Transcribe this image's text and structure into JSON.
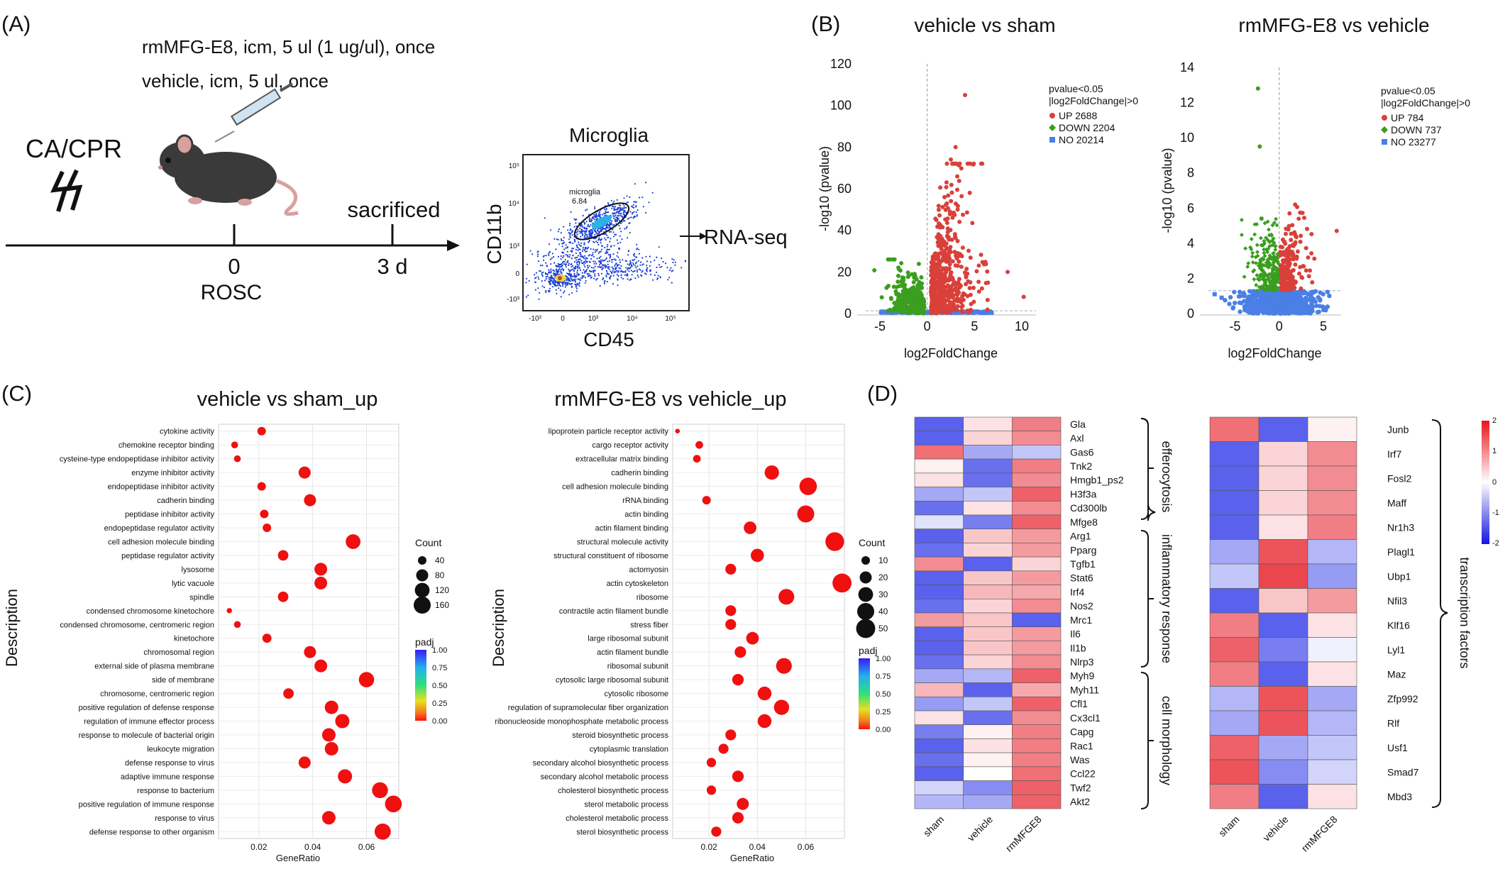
{
  "panels": {
    "A": {
      "label": "(A)",
      "treatment_line1": "rmMFG-E8, icm, 5 ul (1 ug/ul), once",
      "treatment_line2": "vehicle, icm, 5 ul, once",
      "event": "CA/CPR",
      "timepoint0": "0",
      "rosc": "ROSC",
      "sacrificed": "sacrificed",
      "timepoint3": "3 d",
      "flow_title": "Microglia",
      "flow_xlabel": "CD45",
      "flow_ylabel": "CD11b",
      "gate_name": "microglia",
      "gate_value": "6.84",
      "flow_yticks": [
        "10⁵",
        "10⁴",
        "10³",
        "0",
        "-10³"
      ],
      "flow_xticks": [
        "-10³",
        "0",
        "10³",
        "10⁴",
        "10⁵"
      ],
      "output": "RNA-seq"
    },
    "B": {
      "label": "(B)",
      "plots": [
        {
          "title": "vehicle vs sham",
          "xlabel": "log2FoldChange",
          "ylabel": "-log10 (pvalue)",
          "xlim": [
            -6.5,
            11.5
          ],
          "ylim": [
            0,
            120
          ],
          "xticks": [
            -5,
            0,
            5,
            10
          ],
          "yticks": [
            0,
            20,
            40,
            60,
            80,
            100,
            120
          ],
          "legend_header1": "pvalue<0.05",
          "legend_header2": "|log2FoldChange|>0",
          "legend": [
            {
              "label": "UP 2688",
              "color": "#d9403a"
            },
            {
              "label": "DOWN 2204",
              "color": "#3a9e1e"
            },
            {
              "label": "NO 20214",
              "color": "#4a7fe6"
            }
          ]
        },
        {
          "title": "rmMFG-E8 vs vehicle",
          "xlabel": "log2FoldChange",
          "ylabel": "-log10 (pvalue)",
          "xlim": [
            -8,
            7
          ],
          "ylim": [
            0,
            14
          ],
          "xticks": [
            -5,
            0,
            5
          ],
          "yticks": [
            0,
            2,
            4,
            6,
            8,
            10,
            12,
            14
          ],
          "legend_header1": "pvalue<0.05",
          "legend_header2": "|log2FoldChange|>0",
          "legend": [
            {
              "label": "UP 784",
              "color": "#d9403a"
            },
            {
              "label": "DOWN 737",
              "color": "#3a9e1e"
            },
            {
              "label": "NO 23277",
              "color": "#4a7fe6"
            }
          ]
        }
      ]
    },
    "C": {
      "label": "(C)",
      "colorbar_ticks": [
        "1.00",
        "0.75",
        "0.50",
        "0.25",
        "0.00"
      ]
    },
    "D": {
      "label": "(D)",
      "columns": [
        "sham",
        "vehicle",
        "rmMFGE8"
      ],
      "left_groups": [
        "efferocytosis",
        "inflammatory response",
        "cell morphology"
      ],
      "right_group": "transcription factors",
      "scale_ticks": [
        "2",
        "1",
        "0",
        "-1",
        "-2"
      ]
    }
  },
  "chart_data": [
    {
      "type": "scatter",
      "title": "vehicle vs sham_up",
      "xlabel": "GeneRatio",
      "ylabel": "Description",
      "xlim": [
        0.005,
        0.072
      ],
      "xticks": [
        0.02,
        0.04,
        0.06
      ],
      "xtick_labels": [
        "0.02",
        "0.04",
        "0.06"
      ],
      "size_legend_title": "Count",
      "size_legend": [
        40,
        80,
        120,
        160
      ],
      "color_legend_title": "padj",
      "categories": [
        "cytokine activity",
        "chemokine receptor binding",
        "cysteine-type endopeptidase inhibitor activity",
        "enzyme inhibitor activity",
        "endopeptidase inhibitor activity",
        "cadherin binding",
        "peptidase inhibitor activity",
        "endopeptidase regulator activity",
        "cell adhesion molecule binding",
        "peptidase regulator activity",
        "lysosome",
        "lytic vacuole",
        "spindle",
        "condensed chromosome kinetochore",
        "condensed chromosome, centromeric region",
        "kinetochore",
        "chromosomal region",
        "external side of plasma membrane",
        "side of membrane",
        "chromosome, centromeric region",
        "positive regulation of defense response",
        "regulation of immune effector process",
        "response to molecule of bacterial origin",
        "leukocyte migration",
        "defense response to virus",
        "adaptive immune response",
        "response to bacterium",
        "positive regulation of immune response",
        "response to virus",
        "defense response to other organism"
      ],
      "gene_ratio": [
        0.021,
        0.011,
        0.012,
        0.037,
        0.021,
        0.039,
        0.022,
        0.023,
        0.055,
        0.029,
        0.043,
        0.043,
        0.029,
        0.009,
        0.012,
        0.023,
        0.039,
        0.043,
        0.06,
        0.031,
        0.047,
        0.051,
        0.046,
        0.047,
        0.037,
        0.052,
        0.065,
        0.07,
        0.046,
        0.066
      ],
      "count": [
        40,
        25,
        25,
        80,
        40,
        80,
        40,
        40,
        120,
        60,
        90,
        90,
        60,
        15,
        25,
        45,
        80,
        90,
        130,
        60,
        100,
        110,
        100,
        100,
        80,
        110,
        140,
        155,
        100,
        145
      ]
    },
    {
      "type": "scatter",
      "title": "rmMFG-E8 vs vehicle_up",
      "xlabel": "GeneRatio",
      "ylabel": "Description",
      "xlim": [
        0.005,
        0.076
      ],
      "xticks": [
        0.02,
        0.04,
        0.06
      ],
      "xtick_labels": [
        "0.02",
        "0.04",
        "0.06"
      ],
      "size_legend_title": "Count",
      "size_legend": [
        10,
        20,
        30,
        40,
        50
      ],
      "color_legend_title": "padj",
      "categories": [
        "lipoprotein particle receptor activity",
        "cargo receptor activity",
        "extracellular matrix binding",
        "cadherin binding",
        "cell adhesion molecule binding",
        "rRNA binding",
        "actin binding",
        "actin filament binding",
        "structural molecule activity",
        "structural constituent of ribosome",
        "actomyosin",
        "actin cytoskeleton",
        "ribosome",
        "contractile actin filament bundle",
        "stress fiber",
        "large ribosomal subunit",
        "actin filament bundle",
        "ribosomal subunit",
        "cytosolic large ribosomal subunit",
        "cytosolic ribosome",
        "regulation of supramolecular fiber organization",
        "ribonucleoside monophosphate metabolic process",
        "steroid biosynthetic process",
        "cytoplasmic translation",
        "secondary alcohol biosynthetic process",
        "secondary alcohol metabolic process",
        "cholesterol biosynthetic process",
        "sterol metabolic process",
        "cholesterol metabolic process",
        "sterol biosynthetic process"
      ],
      "gene_ratio": [
        0.007,
        0.016,
        0.015,
        0.046,
        0.061,
        0.019,
        0.06,
        0.037,
        0.072,
        0.04,
        0.029,
        0.075,
        0.052,
        0.029,
        0.029,
        0.038,
        0.033,
        0.051,
        0.032,
        0.043,
        0.05,
        0.043,
        0.029,
        0.026,
        0.021,
        0.032,
        0.021,
        0.034,
        0.032,
        0.023
      ],
      "count": [
        3,
        8,
        8,
        28,
        42,
        10,
        40,
        22,
        48,
        24,
        16,
        50,
        34,
        16,
        16,
        22,
        18,
        34,
        18,
        26,
        32,
        26,
        16,
        14,
        12,
        18,
        12,
        20,
        18,
        14
      ]
    },
    {
      "type": "heatmap",
      "columns": [
        "sham",
        "vehicle",
        "rmMFGE8"
      ],
      "rows": [
        "Gla",
        "Axl",
        "Gas6",
        "Tnk2",
        "Hmgb1_ps2",
        "H3f3a",
        "Cd300lb",
        "Mfge8",
        "Arg1",
        "Pparg",
        "Tgfb1",
        "Stat6",
        "Irf4",
        "Nos2",
        "Mrc1",
        "Il6",
        "Il1b",
        "Nlrp3",
        "Myh9",
        "Myh11",
        "Cfl1",
        "Cx3cl1",
        "Capg",
        "Rac1",
        "Was",
        "Ccl22",
        "Twf2",
        "Akt2"
      ],
      "values": [
        [
          -1.1,
          0.2,
          0.9
        ],
        [
          -1.1,
          0.3,
          0.8
        ],
        [
          1.0,
          -0.6,
          -0.4
        ],
        [
          0.1,
          -1.0,
          0.9
        ],
        [
          0.2,
          -1.0,
          0.8
        ],
        [
          -0.6,
          -0.4,
          1.1
        ],
        [
          -1.0,
          0.2,
          0.8
        ],
        [
          -0.2,
          -0.9,
          1.1
        ],
        [
          -1.1,
          0.4,
          0.7
        ],
        [
          -1.0,
          0.3,
          0.7
        ],
        [
          0.8,
          -1.1,
          0.3
        ],
        [
          -1.1,
          0.4,
          0.7
        ],
        [
          -1.1,
          0.5,
          0.6
        ],
        [
          -1.0,
          0.3,
          0.8
        ],
        [
          0.7,
          0.4,
          -1.1
        ],
        [
          -1.1,
          0.4,
          0.7
        ],
        [
          -1.1,
          0.4,
          0.7
        ],
        [
          -1.0,
          0.3,
          0.8
        ],
        [
          -0.6,
          -0.5,
          1.1
        ],
        [
          0.5,
          -1.1,
          0.6
        ],
        [
          -0.7,
          -0.4,
          1.1
        ],
        [
          0.2,
          -1.0,
          0.8
        ],
        [
          -0.9,
          0.1,
          0.9
        ],
        [
          -1.1,
          0.2,
          0.9
        ],
        [
          -1.0,
          0.1,
          0.9
        ],
        [
          -1.1,
          0.0,
          1.0
        ],
        [
          -0.3,
          -0.8,
          1.1
        ],
        [
          -0.5,
          -0.6,
          1.1
        ]
      ],
      "scale": [
        -2,
        2
      ]
    },
    {
      "type": "heatmap",
      "columns": [
        "sham",
        "vehicle",
        "rmMFGE8"
      ],
      "rows": [
        "Junb",
        "Irf7",
        "Fosl2",
        "Maff",
        "Nr1h3",
        "Plagl1",
        "Ubp1",
        "Nfil3",
        "Klf16",
        "Lyl1",
        "Maz",
        "Zfp992",
        "Rlf",
        "Usf1",
        "Smad7",
        "Mbd3"
      ],
      "values": [
        [
          1.0,
          -1.1,
          0.1
        ],
        [
          -1.1,
          0.3,
          0.8
        ],
        [
          -1.1,
          0.3,
          0.8
        ],
        [
          -1.1,
          0.3,
          0.8
        ],
        [
          -1.1,
          0.2,
          0.9
        ],
        [
          -0.6,
          1.2,
          -0.5
        ],
        [
          -0.4,
          1.3,
          -0.7
        ],
        [
          -1.1,
          0.4,
          0.7
        ],
        [
          0.9,
          -1.1,
          0.2
        ],
        [
          1.1,
          -0.9,
          -0.1
        ],
        [
          0.9,
          -1.1,
          0.2
        ],
        [
          -0.5,
          1.2,
          -0.6
        ],
        [
          -0.6,
          1.2,
          -0.5
        ],
        [
          1.1,
          -0.6,
          -0.4
        ],
        [
          1.2,
          -0.8,
          -0.3
        ],
        [
          0.9,
          -1.1,
          0.2
        ]
      ],
      "scale": [
        -2,
        2
      ]
    }
  ]
}
